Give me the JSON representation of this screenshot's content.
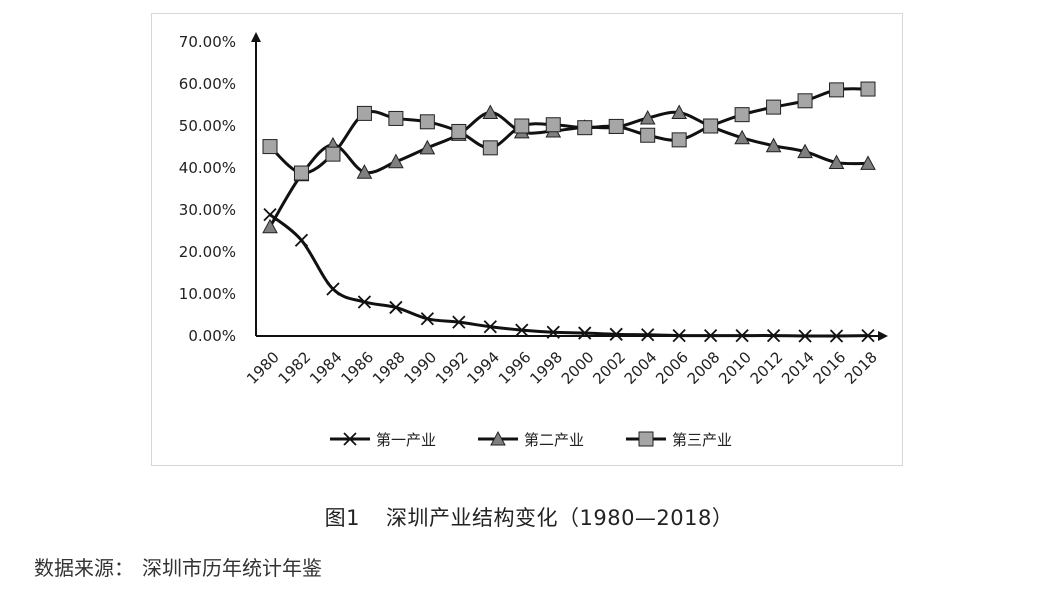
{
  "caption": {
    "figure_no": "图1",
    "title": "深圳产业结构变化（1980—2018）"
  },
  "source": {
    "label": "数据来源：",
    "text": "深圳市历年统计年鉴"
  },
  "chart_data": {
    "type": "line",
    "x": [
      "1980",
      "1982",
      "1984",
      "1986",
      "1988",
      "1990",
      "1992",
      "1994",
      "1996",
      "1998",
      "2000",
      "2002",
      "2004",
      "2006",
      "2008",
      "2010",
      "2012",
      "2014",
      "2016",
      "2018"
    ],
    "y_ticks": [
      "0.00%",
      "10.00%",
      "20.00%",
      "30.00%",
      "40.00%",
      "50.00%",
      "60.00%",
      "70.00%"
    ],
    "ylim": [
      0,
      70
    ],
    "grid": false,
    "legend_position": "bottom",
    "series": [
      {
        "name": "第一产业",
        "marker": "x",
        "color": "#111111",
        "values": [
          28.9,
          22.8,
          11.2,
          8.1,
          6.8,
          4.1,
          3.3,
          2.2,
          1.4,
          0.9,
          0.7,
          0.4,
          0.3,
          0.1,
          0.1,
          0.1,
          0.1,
          0.0,
          0.0,
          0.1
        ]
      },
      {
        "name": "第二产业",
        "marker": "triangle",
        "color": "#7f7f7f",
        "values": [
          26.0,
          38.4,
          45.5,
          39.0,
          41.5,
          44.8,
          48.0,
          53.2,
          48.6,
          48.8,
          49.7,
          49.7,
          51.9,
          53.2,
          49.9,
          47.2,
          45.3,
          43.9,
          41.3,
          41.1
        ]
      },
      {
        "name": "第三产业",
        "marker": "square",
        "color": "#a6a6a6",
        "values": [
          45.1,
          38.8,
          43.3,
          53.0,
          51.8,
          51.0,
          48.7,
          44.8,
          50.0,
          50.3,
          49.6,
          49.9,
          47.8,
          46.7,
          50.0,
          52.7,
          54.5,
          56.0,
          58.6,
          58.8
        ]
      }
    ]
  }
}
